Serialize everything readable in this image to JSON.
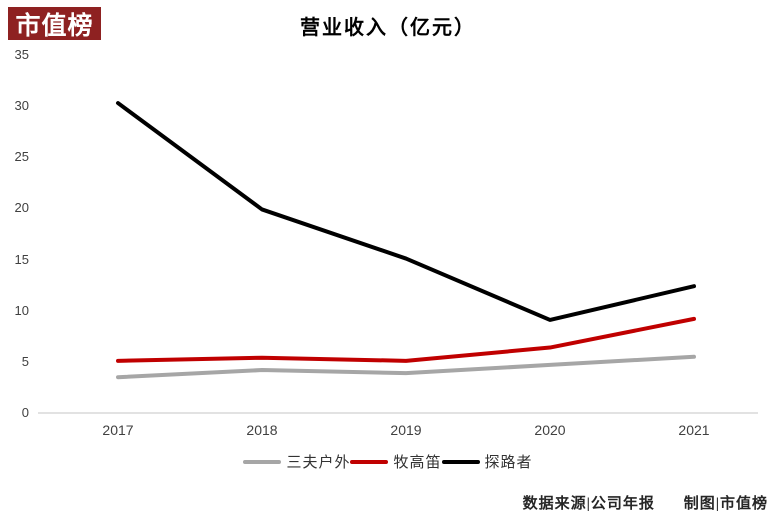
{
  "logo": {
    "text": "市值榜",
    "bg_color": "#8E2121",
    "text_color": "#FFFFFF"
  },
  "title": "营业收入（亿元）",
  "chart_data": {
    "type": "line",
    "title": "营业收入（亿元）",
    "categories": [
      "2017",
      "2018",
      "2019",
      "2020",
      "2021"
    ],
    "series": [
      {
        "name": "三夫户外",
        "color": "#A6A6A6",
        "values": [
          3.5,
          4.2,
          3.9,
          4.7,
          5.5
        ]
      },
      {
        "name": "牧高笛",
        "color": "#C00000",
        "values": [
          5.1,
          5.4,
          5.1,
          6.4,
          9.2
        ]
      },
      {
        "name": "探路者",
        "color": "#000000",
        "values": [
          30.3,
          19.9,
          15.1,
          9.1,
          12.4
        ]
      }
    ],
    "xlabel": "",
    "ylabel": "",
    "ylim": [
      0,
      35
    ],
    "yticks": [
      0,
      5,
      10,
      15,
      20,
      25,
      30,
      35
    ],
    "grid": false,
    "legend_position": "bottom",
    "axis_color": "#D9D9D9"
  },
  "footer": {
    "source": "数据来源|公司年报",
    "credit": "制图|市值榜"
  }
}
